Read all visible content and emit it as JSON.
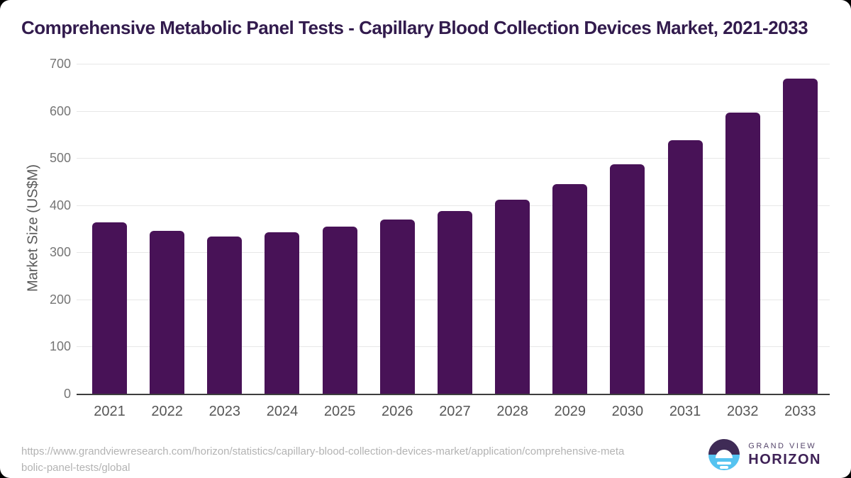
{
  "chart_data": {
    "type": "bar",
    "title": "Comprehensive Metabolic Panel Tests - Capillary Blood Collection Devices Market, 2021-2033",
    "categories": [
      "2021",
      "2022",
      "2023",
      "2024",
      "2025",
      "2026",
      "2027",
      "2028",
      "2029",
      "2030",
      "2031",
      "2032",
      "2033"
    ],
    "values": [
      363,
      346,
      333,
      342,
      354,
      369,
      387,
      412,
      445,
      486,
      538,
      597,
      668
    ],
    "xlabel": "",
    "ylabel": "Market Size (US$M)",
    "ylim": [
      0,
      700
    ],
    "yticks": [
      0,
      100,
      200,
      300,
      400,
      500,
      600,
      700
    ],
    "grid": true,
    "legend": false,
    "bar_color": "#481257"
  },
  "colors": {
    "bar": "#481257",
    "title_text": "#321b4d",
    "gridline": "#e7e7e7",
    "axis_line": "#3d3d3d",
    "y_tick_text": "#757575",
    "x_tick_text": "#565656",
    "url_text": "#b3b3b3",
    "logo_purple": "#3f2b56",
    "logo_blue": "#55c3f0"
  },
  "footer": {
    "url_lines": [
      "https://www.grandviewresearch.com/horizon/statistics/capillary-blood-collection-devices-market/application/comprehensive-meta",
      "bolic-panel-tests/global"
    ],
    "logo": {
      "brand_top": "GRAND VIEW",
      "brand_bottom": "HORIZON"
    }
  }
}
